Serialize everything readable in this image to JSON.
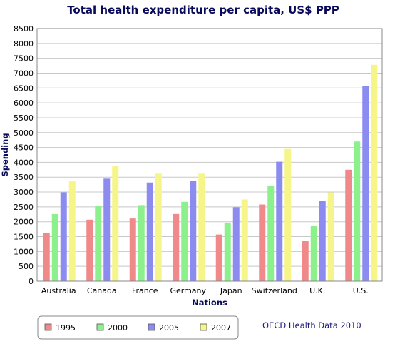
{
  "chart_data": {
    "type": "bar",
    "title": "Total health expenditure per capita, US$ PPP",
    "xlabel": "Nations",
    "ylabel": "Spending",
    "ylim": [
      0,
      8500
    ],
    "ytick_step": 500,
    "categories": [
      "Australia",
      "Canada",
      "France",
      "Germany",
      "Japan",
      "Switzerland",
      "U.K.",
      "U.S."
    ],
    "series": [
      {
        "name": "1995",
        "color": "#f08a8a",
        "values": [
          1620,
          2070,
          2110,
          2260,
          1570,
          2580,
          1350,
          3750
        ]
      },
      {
        "name": "2000",
        "color": "#8cf08c",
        "values": [
          2260,
          2540,
          2560,
          2670,
          1970,
          3220,
          1850,
          4700
        ]
      },
      {
        "name": "2005",
        "color": "#8c8cf0",
        "values": [
          2990,
          3450,
          3320,
          3370,
          2490,
          4020,
          2700,
          6560
        ]
      },
      {
        "name": "2007",
        "color": "#f5f58a",
        "values": [
          3360,
          3870,
          3620,
          3620,
          2750,
          4450,
          2990,
          7280
        ]
      }
    ],
    "grid": true,
    "legend": "bottom-left"
  },
  "credit": "OECD Health Data 2010"
}
